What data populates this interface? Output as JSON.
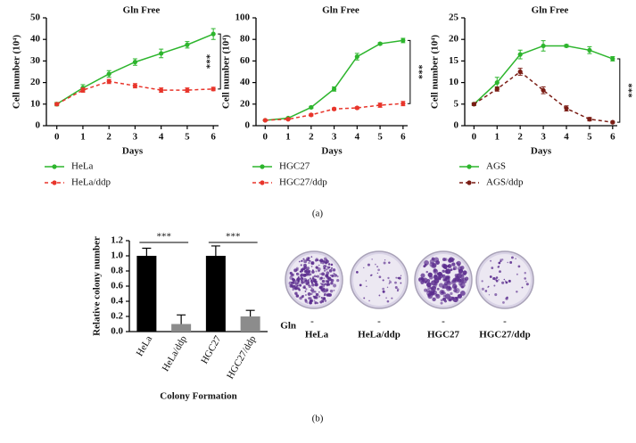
{
  "figure": {
    "panel_a": "(a)",
    "panel_b": "(b)"
  },
  "chart_data": [
    {
      "type": "line",
      "title": "Gln Free",
      "x_label": "Days",
      "y_label": "Cell number (10⁴)",
      "x": [
        0,
        1,
        2,
        3,
        4,
        5,
        6
      ],
      "xlim": [
        -0.4,
        6.2
      ],
      "xticks": [
        0,
        1,
        2,
        3,
        4,
        5,
        6
      ],
      "ylim": [
        0,
        50
      ],
      "yticks": [
        0,
        10,
        20,
        30,
        40,
        50
      ],
      "annotation": "***",
      "series": [
        {
          "name": "HeLa",
          "color": "#2db52d",
          "line_style": "solid",
          "values": [
            10,
            17.5,
            24,
            29.5,
            33.5,
            37.5,
            42.5
          ],
          "errors": [
            0.8,
            1.5,
            1.5,
            1.5,
            2,
            1.5,
            2.5
          ]
        },
        {
          "name": "HeLa/ddp",
          "color": "#e8352b",
          "line_style": "dashed",
          "values": [
            10,
            16.5,
            20.5,
            18.5,
            16.5,
            16.5,
            17
          ],
          "errors": [
            0.5,
            1,
            1,
            1,
            1,
            1,
            0.8
          ]
        }
      ]
    },
    {
      "type": "line",
      "title": "Gln Free",
      "x_label": "Days",
      "y_label": "Cell number (10⁴)",
      "x": [
        0,
        1,
        2,
        3,
        4,
        5,
        6
      ],
      "xlim": [
        -0.4,
        6.2
      ],
      "xticks": [
        0,
        1,
        2,
        3,
        4,
        5,
        6
      ],
      "ylim": [
        0,
        100
      ],
      "yticks": [
        0,
        20,
        40,
        60,
        80,
        100
      ],
      "annotation": "***",
      "series": [
        {
          "name": "HGC27",
          "color": "#2db52d",
          "line_style": "solid",
          "values": [
            5,
            7,
            17,
            34,
            64,
            76,
            79
          ],
          "errors": [
            0.5,
            1,
            1,
            2,
            3,
            1,
            2
          ]
        },
        {
          "name": "HGC27/ddp",
          "color": "#e8352b",
          "line_style": "dashed",
          "values": [
            5,
            6,
            10,
            15.5,
            16.5,
            19,
            20.5
          ],
          "errors": [
            0.5,
            0.5,
            1,
            1,
            1,
            2,
            2
          ]
        }
      ]
    },
    {
      "type": "line",
      "title": "Gln Free",
      "x_label": "Days",
      "y_label": "Cell number (10⁴)",
      "x": [
        0,
        1,
        2,
        3,
        4,
        5,
        6
      ],
      "xlim": [
        -0.4,
        6.2
      ],
      "xticks": [
        0,
        1,
        2,
        3,
        4,
        5,
        6
      ],
      "ylim": [
        0,
        25
      ],
      "yticks": [
        0,
        5,
        10,
        15,
        20,
        25
      ],
      "annotation": "***",
      "series": [
        {
          "name": "AGS",
          "color": "#2db52d",
          "line_style": "solid",
          "values": [
            5,
            10,
            16.5,
            18.5,
            18.5,
            17.5,
            15.5
          ],
          "errors": [
            0.3,
            1.2,
            1,
            1.2,
            0.3,
            0.8,
            0.5
          ]
        },
        {
          "name": "AGS/ddp",
          "color": "#7a1c14",
          "line_style": "dashed",
          "values": [
            5,
            8.5,
            12.5,
            8.2,
            4,
            1.5,
            0.8
          ],
          "errors": [
            0.3,
            0.5,
            0.8,
            0.8,
            0.6,
            0.4,
            0.2
          ]
        }
      ]
    },
    {
      "type": "bar",
      "x_label": "Colony Formation",
      "y_label": "Relative colony number",
      "categories": [
        "HeLa",
        "HeLa/ddp",
        "HGC27",
        "HGC27/ddp"
      ],
      "values": [
        1.0,
        0.1,
        1.0,
        0.2
      ],
      "errors": [
        0.1,
        0.12,
        0.13,
        0.08
      ],
      "colors": [
        "#000000",
        "#8c8c8c",
        "#000000",
        "#8c8c8c"
      ],
      "ylim": [
        0,
        1.2
      ],
      "yticks": [
        {
          "value": 0,
          "label": "0.0"
        },
        0.2,
        0.4,
        0.6,
        0.8,
        {
          "value": 1,
          "label": "1.0"
        },
        1.2
      ],
      "annotations": [
        "***",
        "***"
      ]
    }
  ],
  "images": {
    "condition": "Gln",
    "treatment": [
      "-",
      "-",
      "-",
      "-"
    ],
    "labels": [
      "HeLa",
      "HeLa/ddp",
      "HGC27",
      "HGC27/ddp"
    ]
  }
}
